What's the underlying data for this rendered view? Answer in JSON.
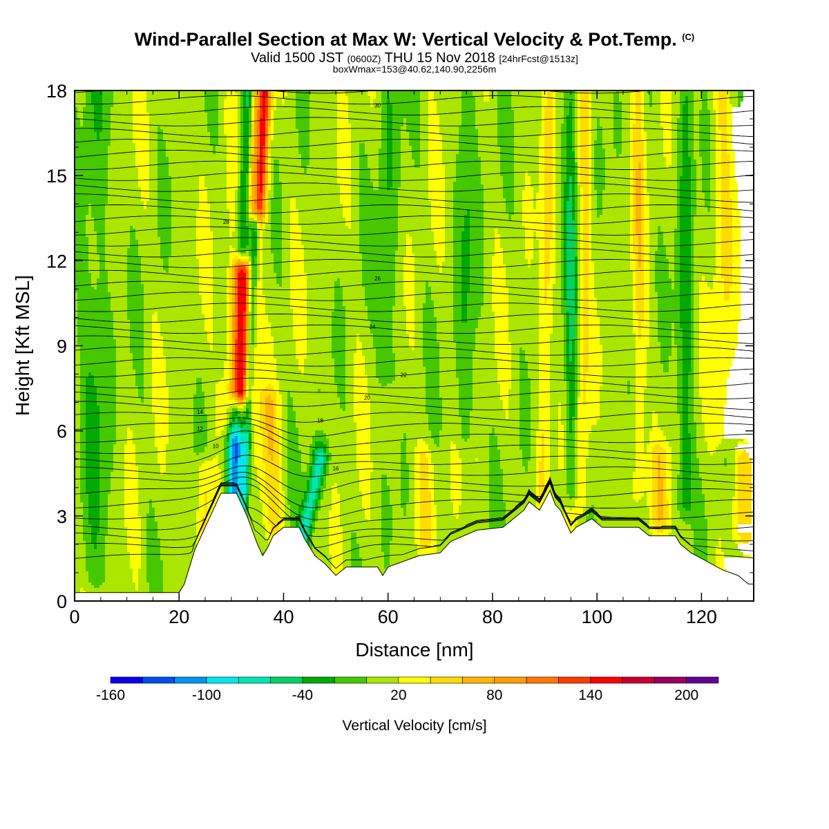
{
  "header": {
    "title": "Wind-Parallel Section at Max W: Vertical Velocity & Pot.Temp.",
    "copyright_mark": "(C)",
    "valid_prefix": "Valid 1500 JST",
    "valid_utc": "(0600Z)",
    "valid_date": "THU 15 Nov 2018",
    "forecast_info": "[24hrFcst@1513z]",
    "box_info": "boxWmax=153@40.62,140.90,2256m"
  },
  "colorbar": {
    "label": "Vertical Velocity [cm/s]",
    "tick_labels": [
      "-160",
      "-100",
      "-40",
      "20",
      "80",
      "140",
      "200"
    ],
    "tick_values": [
      -160,
      -100,
      -40,
      20,
      80,
      140,
      200
    ],
    "levels": [
      -160,
      -140,
      -120,
      -100,
      -80,
      -60,
      -40,
      -20,
      0,
      20,
      40,
      60,
      80,
      100,
      120,
      140,
      160,
      180,
      200,
      220
    ],
    "colors": [
      "#0a00f0",
      "#0050f0",
      "#0096f0",
      "#00e6f0",
      "#00e6b4",
      "#00d264",
      "#00aa00",
      "#46c800",
      "#aae600",
      "#ffff00",
      "#ffdc00",
      "#ffb400",
      "#ffa000",
      "#ff7800",
      "#ff3c00",
      "#ff0000",
      "#c80032",
      "#960064",
      "#640096"
    ]
  },
  "chart_data": {
    "type": "heatmap",
    "xlabel": "Distance [nm]",
    "ylabel": "Height [Kft MSL]",
    "xlim": [
      0,
      130
    ],
    "ylim": [
      0,
      18
    ],
    "x_ticks": [
      0,
      20,
      40,
      60,
      80,
      100,
      120
    ],
    "y_ticks": [
      0,
      3,
      6,
      9,
      12,
      15,
      18
    ],
    "background_value_cm_s": 10,
    "terrain_kft": [
      [
        0,
        0.3
      ],
      [
        20,
        0.3
      ],
      [
        21,
        0.6
      ],
      [
        22,
        1.2
      ],
      [
        23,
        1.8
      ],
      [
        24,
        2.2
      ],
      [
        25,
        2.6
      ],
      [
        26,
        3.0
      ],
      [
        27,
        3.4
      ],
      [
        28,
        3.8
      ],
      [
        31,
        3.8
      ],
      [
        32,
        3.4
      ],
      [
        33,
        3.0
      ],
      [
        34,
        2.5
      ],
      [
        35,
        2.0
      ],
      [
        36,
        1.6
      ],
      [
        37,
        1.9
      ],
      [
        38,
        2.3
      ],
      [
        40,
        2.6
      ],
      [
        43,
        2.6
      ],
      [
        44,
        2.2
      ],
      [
        45,
        1.9
      ],
      [
        46,
        1.6
      ],
      [
        48,
        1.3
      ],
      [
        50,
        0.9
      ],
      [
        52,
        1.2
      ],
      [
        58,
        1.2
      ],
      [
        59,
        0.9
      ],
      [
        60,
        1.2
      ],
      [
        66,
        1.6
      ],
      [
        70,
        1.7
      ],
      [
        72,
        2.1
      ],
      [
        77,
        2.5
      ],
      [
        82,
        2.6
      ],
      [
        84,
        2.9
      ],
      [
        86,
        3.2
      ],
      [
        87,
        3.5
      ],
      [
        89,
        3.2
      ],
      [
        91,
        3.9
      ],
      [
        92,
        3.4
      ],
      [
        93,
        3.2
      ],
      [
        94,
        2.8
      ],
      [
        95,
        2.4
      ],
      [
        96,
        2.6
      ],
      [
        99,
        2.9
      ],
      [
        101,
        2.6
      ],
      [
        108,
        2.6
      ],
      [
        110,
        2.3
      ],
      [
        115,
        2.3
      ],
      [
        116,
        2.0
      ],
      [
        118,
        1.7
      ],
      [
        120,
        1.5
      ],
      [
        122,
        1.3
      ],
      [
        124,
        1.1
      ],
      [
        127,
        0.9
      ],
      [
        129,
        0.6
      ],
      [
        130,
        0.6
      ]
    ],
    "vertical_velocity_features": [
      {
        "x_bottom": 30.5,
        "x_top": 33.5,
        "y_bottom": 4,
        "y_top": 18,
        "width_nm": 1.6,
        "w": -130
      },
      {
        "x_bottom": 32.5,
        "x_top": 35.5,
        "y_bottom": 3.5,
        "y_top": 18,
        "width_nm": 0.8,
        "w": -75
      },
      {
        "x_bottom": 31.5,
        "x_top": 32,
        "y_bottom": 7.5,
        "y_top": 11.5,
        "width_nm": 1.6,
        "w": 195
      },
      {
        "x_bottom": 31,
        "x_top": 34.5,
        "y_bottom": 6.5,
        "y_top": 18,
        "width_nm": 2.5,
        "w": 85
      },
      {
        "x_bottom": 35,
        "x_top": 36,
        "y_bottom": 14,
        "y_top": 18,
        "width_nm": 1.5,
        "w": 140
      },
      {
        "x_bottom": 43.5,
        "x_top": 47,
        "y_bottom": 2,
        "y_top": 5,
        "width_nm": 1.5,
        "w": -80
      },
      {
        "x_bottom": 38,
        "x_top": 37,
        "y_bottom": 2.5,
        "y_top": 7,
        "width_nm": 2,
        "w": 40
      },
      {
        "x_bottom": 89.5,
        "x_top": 91,
        "y_bottom": 4,
        "y_top": 18,
        "width_nm": 1.2,
        "w": 35
      },
      {
        "x_bottom": 97,
        "x_top": 98,
        "y_bottom": 3.5,
        "y_top": 18,
        "width_nm": 1.2,
        "w": 35
      },
      {
        "x_bottom": 95,
        "x_top": 95,
        "y_bottom": 4,
        "y_top": 18,
        "width_nm": 1.2,
        "w": -45
      },
      {
        "x_bottom": 108,
        "x_top": 108,
        "y_bottom": 4,
        "y_top": 18,
        "width_nm": 1.2,
        "w": 35
      },
      {
        "x_bottom": 117,
        "x_top": 117,
        "y_bottom": 3.5,
        "y_top": 18,
        "width_nm": 1.5,
        "w": -40
      },
      {
        "x_bottom": 124,
        "x_top": 124,
        "y_bottom": 6,
        "y_top": 18,
        "width_nm": 2,
        "w": 30
      },
      {
        "x_bottom": 112,
        "x_top": 112,
        "y_bottom": 3,
        "y_top": 5,
        "width_nm": 2,
        "w": 35
      },
      {
        "x_bottom": 128,
        "x_top": 128,
        "y_bottom": 2.5,
        "y_top": 5,
        "width_nm": 2.5,
        "w": 40
      },
      {
        "x_bottom": 25,
        "x_top": 25,
        "y_bottom": 2.5,
        "y_top": 4.5,
        "width_nm": 1.5,
        "w": 45
      },
      {
        "x_bottom": 67,
        "x_top": 67,
        "y_bottom": 2.5,
        "y_top": 5,
        "width_nm": 2,
        "w": 30
      },
      {
        "x_bottom": 60,
        "x_top": 60,
        "y_bottom": 8,
        "y_top": 18,
        "width_nm": 2,
        "w": -25
      },
      {
        "x_bottom": 4,
        "x_top": 4,
        "y_bottom": 1,
        "y_top": 18,
        "width_nm": 3,
        "w": -25
      },
      {
        "x_bottom": 75,
        "x_top": 75,
        "y_bottom": 6,
        "y_top": 18,
        "width_nm": 2,
        "w": -25
      }
    ],
    "isentrope_labels": [
      "10",
      "12",
      "14",
      "16",
      "18",
      "20",
      "22",
      "24",
      "26",
      "28",
      "30"
    ]
  }
}
